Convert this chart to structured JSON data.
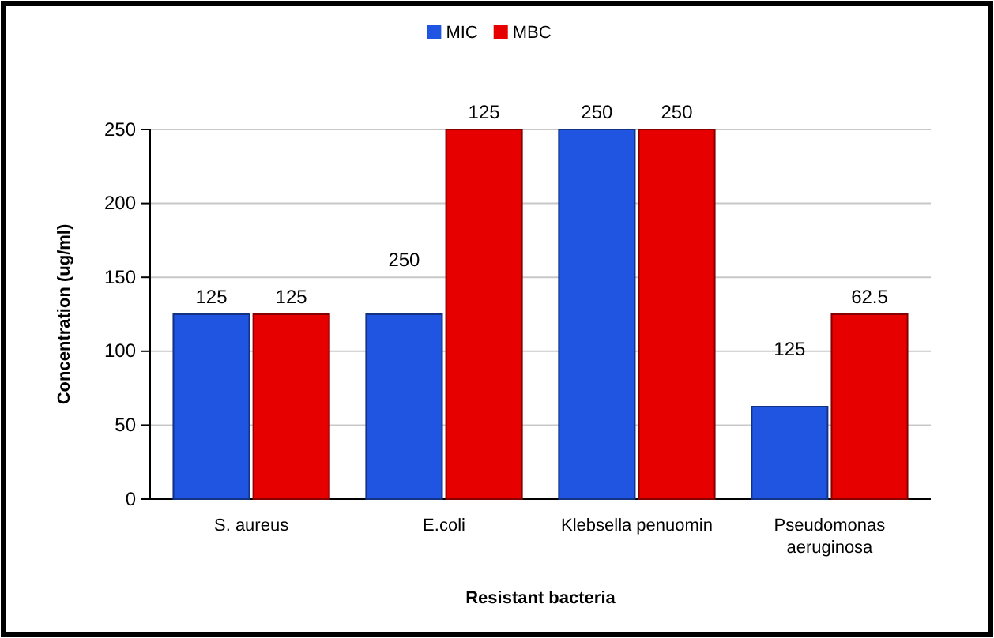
{
  "chart_data": {
    "type": "bar",
    "xlabel": "Resistant bacteria",
    "ylabel": "Concentration (ug/ml)",
    "categories": [
      "S. aureus",
      "E.coli",
      "Klebsella penuomin",
      "Pseudomonas aeruginosa"
    ],
    "series": [
      {
        "name": "MIC",
        "color": "#1f55e0",
        "values": [
          125,
          125,
          250,
          62.5
        ],
        "value_labels": [
          "125",
          null,
          "250",
          null
        ]
      },
      {
        "name": "MBC",
        "color": "#e60000",
        "values": [
          125,
          250,
          250,
          125
        ],
        "value_labels": [
          "125",
          null,
          "250",
          null
        ]
      }
    ],
    "annotations": [
      {
        "text": "250",
        "x": "E.coli",
        "y": 150
      },
      {
        "text": "125",
        "x": "E.coli",
        "y": 250
      },
      {
        "text": "125",
        "x": "Pseudomonas aeruginosa",
        "y": 90
      },
      {
        "text": "62.5",
        "x": "Pseudomonas aeruginosa",
        "y": 125
      }
    ],
    "ylim": [
      0,
      250
    ],
    "yticks": [
      0,
      50,
      100,
      150,
      200,
      250
    ],
    "grid": "y",
    "legend": "top"
  }
}
